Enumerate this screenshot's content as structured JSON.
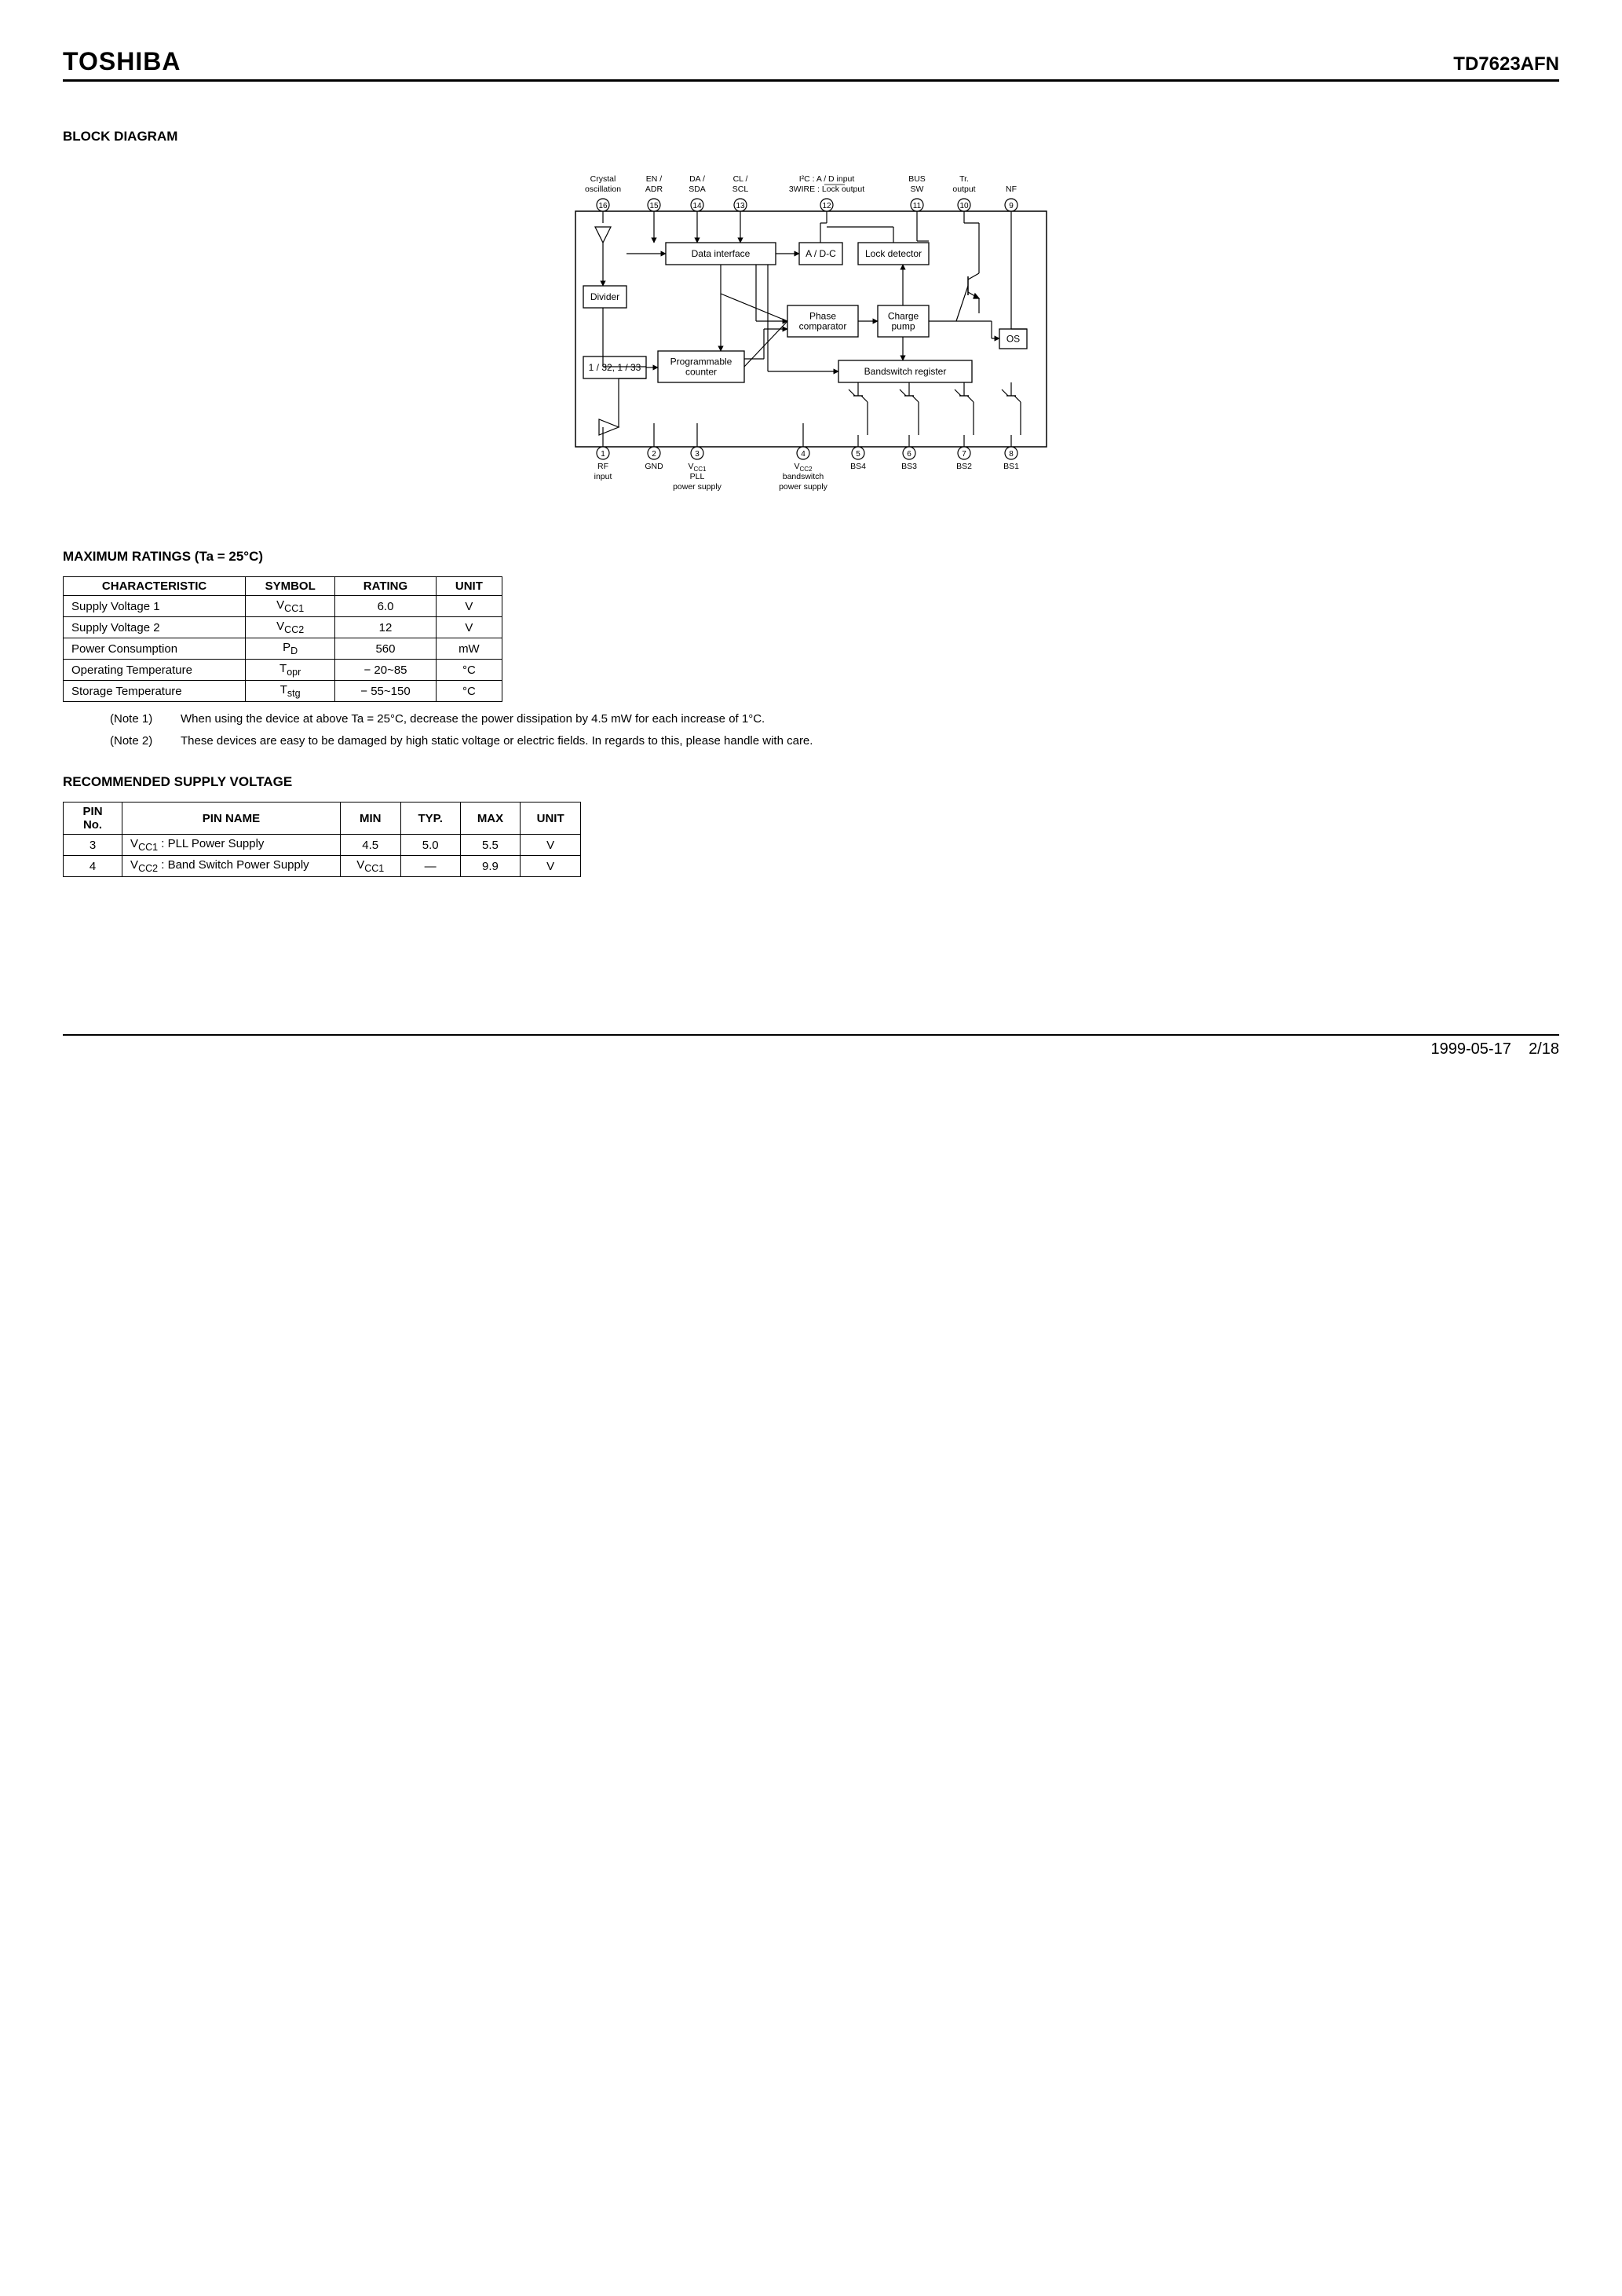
{
  "header": {
    "brand": "TOSHIBA",
    "part": "TD7623AFN"
  },
  "sections": {
    "block_diagram": "BLOCK  DIAGRAM",
    "max_ratings": "MAXIMUM  RATINGS  (Ta = 25°C)",
    "rec_supply": "RECOMMENDED  SUPPLY  VOLTAGE"
  },
  "diagram": {
    "pins_top": [
      {
        "num": "16",
        "l1": "Crystal",
        "l2": "oscillation"
      },
      {
        "num": "15",
        "l1": "EN /",
        "l2": "ADR"
      },
      {
        "num": "14",
        "l1": "DA /",
        "l2": "SDA"
      },
      {
        "num": "13",
        "l1": "CL /",
        "l2": "SCL"
      },
      {
        "num": "12",
        "l1": "I²C     :  A / D input",
        "l2": "3WIRE :  Lock output",
        "overline": true
      },
      {
        "num": "11",
        "l1": "BUS",
        "l2": "SW"
      },
      {
        "num": "10",
        "l1": "Tr.",
        "l2": "output"
      },
      {
        "num": "9",
        "l1": "",
        "l2": "NF"
      }
    ],
    "pins_bot": [
      {
        "num": "1",
        "l1": "RF",
        "l2": "input"
      },
      {
        "num": "2",
        "l1": "GND",
        "l2": ""
      },
      {
        "num": "3",
        "l1": "VCC1",
        "l2": "PLL",
        "l3": "power supply"
      },
      {
        "num": "4",
        "l1": "VCC2",
        "l2": "bandswitch",
        "l3": "power supply"
      },
      {
        "num": "5",
        "l1": "BS4",
        "l2": ""
      },
      {
        "num": "6",
        "l1": "BS3",
        "l2": ""
      },
      {
        "num": "7",
        "l1": "BS2",
        "l2": ""
      },
      {
        "num": "8",
        "l1": "BS1",
        "l2": ""
      }
    ],
    "blocks": {
      "data_if": "Data interface",
      "adc": "A / D-C",
      "lock": "Lock detector",
      "divider": "Divider",
      "phase": "Phase\ncomparator",
      "charge": "Charge\npump",
      "os": "OS",
      "presc": "1 / 32, 1 / 33",
      "prog": "Programmable\ncounter",
      "bsreg": "Bandswitch register"
    }
  },
  "max_ratings": {
    "headers": [
      "CHARACTERISTIC",
      "SYMBOL",
      "RATING",
      "UNIT"
    ],
    "rows": [
      [
        "Supply Voltage 1",
        "V<sub>CC1</sub>",
        "6.0",
        "V"
      ],
      [
        "Supply Voltage 2",
        "V<sub>CC2</sub>",
        "12",
        "V"
      ],
      [
        "Power Consumption",
        "P<sub>D</sub>",
        "560",
        "mW"
      ],
      [
        "Operating Temperature",
        "T<sub>opr</sub>",
        "− 20~85",
        "°C"
      ],
      [
        "Storage Temperature",
        "T<sub>stg</sub>",
        "− 55~150",
        "°C"
      ]
    ]
  },
  "notes": {
    "n1_label": "(Note 1)",
    "n1": "When using the device at above Ta = 25°C, decrease the power dissipation by 4.5 mW for each increase of 1°C.",
    "n2_label": "(Note 2)",
    "n2": "These devices are easy to be damaged by high static voltage or electric fields. In regards to this, please handle with care."
  },
  "rec_supply": {
    "headers": [
      "PIN\nNo.",
      "PIN NAME",
      "MIN",
      "TYP.",
      "MAX",
      "UNIT"
    ],
    "rows": [
      [
        "3",
        "V<sub>CC1</sub> : PLL Power Supply",
        "4.5",
        "5.0",
        "5.5",
        "V"
      ],
      [
        "4",
        "V<sub>CC2</sub> : Band Switch Power Supply",
        "V<sub>CC1</sub>",
        "—",
        "9.9",
        "V"
      ]
    ]
  },
  "footer": {
    "date": "1999-05-17",
    "page": "2/18"
  },
  "style": {
    "box_stroke": "#000000",
    "box_fill": "#ffffff",
    "line": "#000000",
    "font_small": 11,
    "font_med": 13
  }
}
